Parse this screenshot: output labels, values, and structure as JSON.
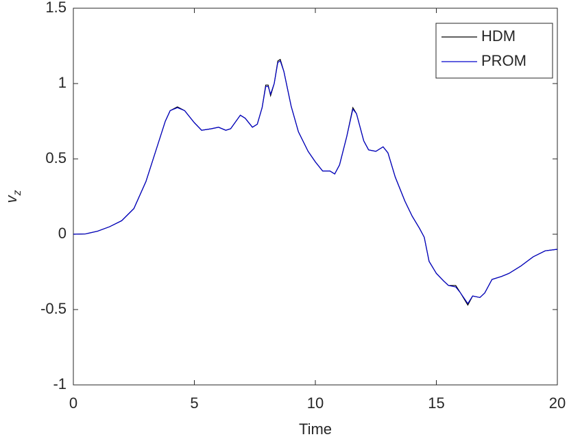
{
  "chart_data": {
    "type": "line",
    "xlabel": "Time",
    "ylabel": {
      "text": "v",
      "subscript": "z"
    },
    "xlim": [
      0,
      20
    ],
    "ylim": [
      -1,
      1.5
    ],
    "xticks": [
      0,
      5,
      10,
      15,
      20
    ],
    "yticks": [
      -1,
      -0.5,
      0,
      0.5,
      1,
      1.5
    ],
    "grid": false,
    "legend": "northeast",
    "x": [
      0,
      0.5,
      1,
      1.5,
      2,
      2.5,
      3,
      3.5,
      3.8,
      4,
      4.3,
      4.6,
      5,
      5.3,
      5.7,
      6,
      6.3,
      6.5,
      6.9,
      7.1,
      7.4,
      7.6,
      7.8,
      7.95,
      8.05,
      8.15,
      8.3,
      8.45,
      8.55,
      8.7,
      9,
      9.3,
      9.7,
      10,
      10.3,
      10.6,
      10.8,
      11,
      11.3,
      11.55,
      11.7,
      12,
      12.2,
      12.5,
      12.8,
      13,
      13.3,
      13.7,
      14,
      14.3,
      14.5,
      14.7,
      15,
      15.3,
      15.5,
      15.8,
      16,
      16.3,
      16.5,
      16.8,
      17,
      17.3,
      17.7,
      18,
      18.5,
      19,
      19.5,
      20
    ],
    "series": [
      {
        "name": "HDM",
        "color": "#000000",
        "values": [
          0,
          0.002,
          0.02,
          0.05,
          0.09,
          0.17,
          0.35,
          0.6,
          0.75,
          0.82,
          0.845,
          0.82,
          0.74,
          0.69,
          0.7,
          0.71,
          0.69,
          0.7,
          0.79,
          0.77,
          0.71,
          0.73,
          0.84,
          0.99,
          0.99,
          0.92,
          1.0,
          1.15,
          1.16,
          1.08,
          0.85,
          0.68,
          0.55,
          0.48,
          0.42,
          0.42,
          0.4,
          0.46,
          0.65,
          0.84,
          0.8,
          0.62,
          0.56,
          0.55,
          0.58,
          0.54,
          0.38,
          0.22,
          0.12,
          0.04,
          -0.02,
          -0.18,
          -0.26,
          -0.31,
          -0.34,
          -0.34,
          -0.39,
          -0.47,
          -0.41,
          -0.42,
          -0.39,
          -0.3,
          -0.28,
          -0.26,
          -0.21,
          -0.15,
          -0.11,
          -0.1
        ]
      },
      {
        "name": "PROM",
        "color": "#0000cc",
        "values": [
          0,
          0.002,
          0.02,
          0.05,
          0.09,
          0.17,
          0.35,
          0.6,
          0.75,
          0.82,
          0.84,
          0.82,
          0.74,
          0.69,
          0.7,
          0.71,
          0.69,
          0.7,
          0.79,
          0.77,
          0.71,
          0.73,
          0.84,
          0.98,
          0.98,
          0.93,
          1.0,
          1.14,
          1.15,
          1.08,
          0.85,
          0.68,
          0.55,
          0.48,
          0.42,
          0.42,
          0.4,
          0.46,
          0.65,
          0.83,
          0.8,
          0.62,
          0.56,
          0.55,
          0.58,
          0.54,
          0.38,
          0.22,
          0.12,
          0.04,
          -0.02,
          -0.18,
          -0.26,
          -0.31,
          -0.34,
          -0.35,
          -0.39,
          -0.46,
          -0.41,
          -0.42,
          -0.39,
          -0.3,
          -0.28,
          -0.26,
          -0.21,
          -0.15,
          -0.11,
          -0.1
        ]
      }
    ]
  }
}
